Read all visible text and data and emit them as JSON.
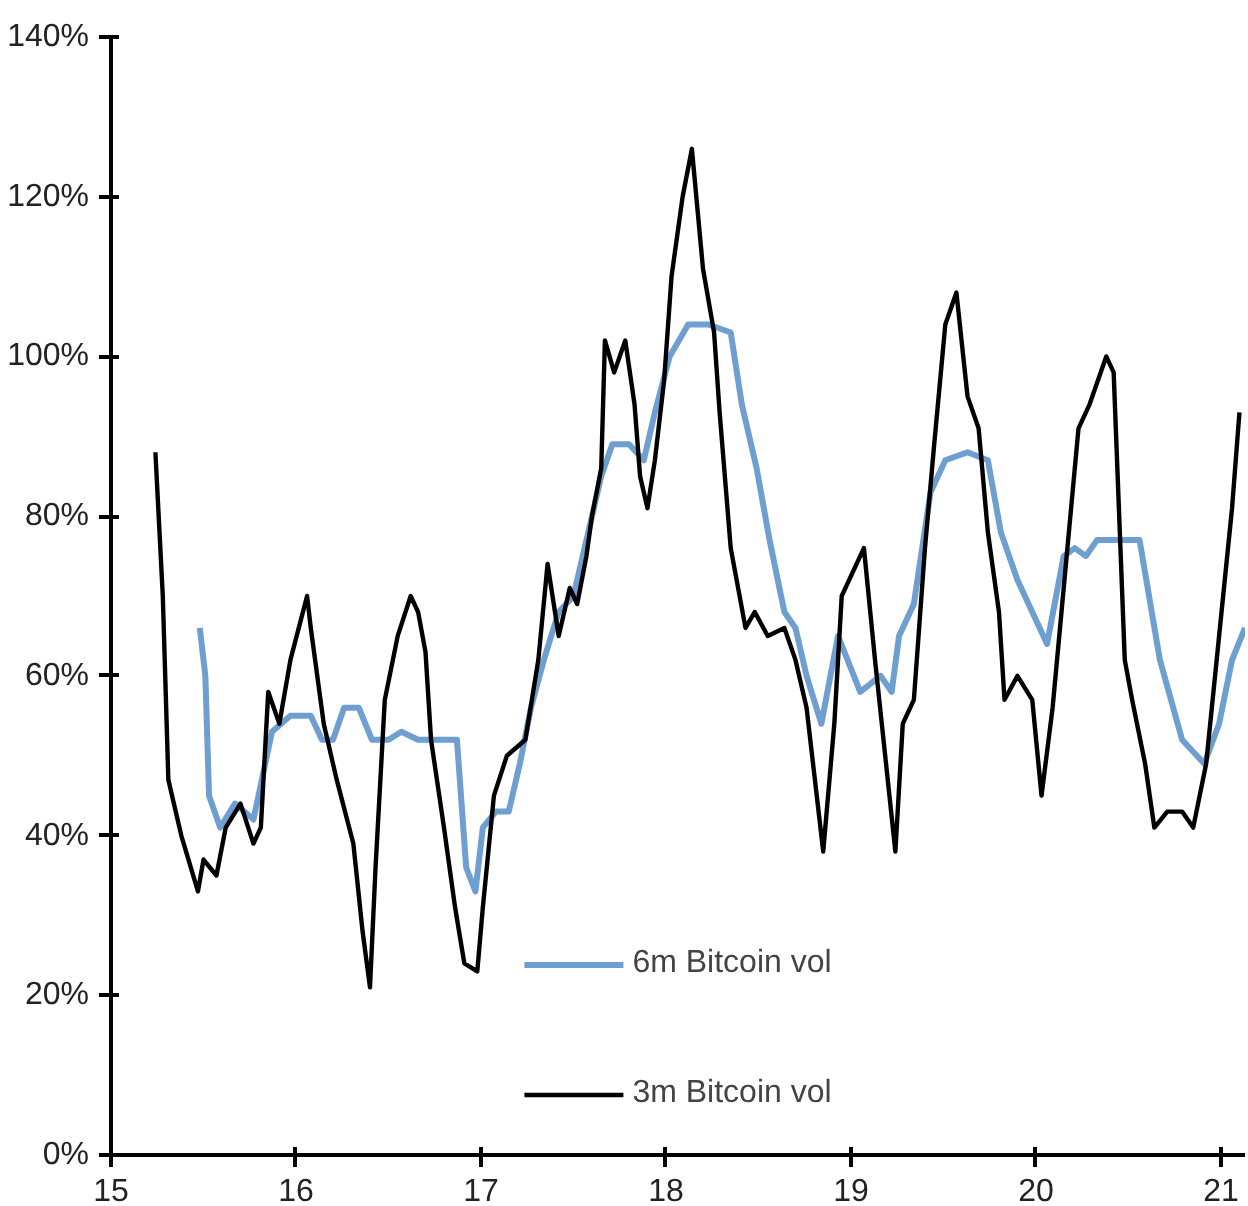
{
  "chart_data": {
    "type": "line",
    "xlim": [
      15,
      21.13
    ],
    "xticks": [
      15,
      16,
      17,
      18,
      19,
      20,
      21
    ],
    "ylim": [
      0,
      140
    ],
    "yticks": [
      {
        "value": 0,
        "label": "0%"
      },
      {
        "value": 20,
        "label": "20%"
      },
      {
        "value": 40,
        "label": "40%"
      },
      {
        "value": 60,
        "label": "60%"
      },
      {
        "value": 80,
        "label": "80%"
      },
      {
        "value": 100,
        "label": "100%"
      },
      {
        "value": 120,
        "label": "120%"
      },
      {
        "value": 140,
        "label": "140%"
      }
    ],
    "grid": false,
    "legend": "bottom",
    "line_style": "solid",
    "marker": "none",
    "series": [
      {
        "name": "6m Bitcoin vol",
        "color": "#6f9fd0",
        "x": [
          15.48,
          15.51,
          15.53,
          15.59,
          15.67,
          15.77,
          15.87,
          15.97,
          16.08,
          16.14,
          16.2,
          16.26,
          16.34,
          16.41,
          16.5,
          16.57,
          16.66,
          16.87,
          16.92,
          16.97,
          17.01,
          17.08,
          17.15,
          17.21,
          17.27,
          17.34,
          17.42,
          17.5,
          17.57,
          17.65,
          17.71,
          17.8,
          17.88,
          17.94,
          18.02,
          18.12,
          18.23,
          18.35,
          18.41,
          18.49,
          18.56,
          18.64,
          18.7,
          18.76,
          18.84,
          18.93,
          19.05,
          19.16,
          19.22,
          19.26,
          19.34,
          19.43,
          19.51,
          19.63,
          19.74,
          19.81,
          19.9,
          19.98,
          20.06,
          20.15,
          20.21,
          20.27,
          20.33,
          20.44,
          20.56,
          20.67,
          20.79,
          20.91,
          20.99,
          21.06,
          21.13
        ],
        "values": [
          66,
          60,
          45,
          41,
          44,
          42,
          53,
          55,
          55,
          52,
          52,
          56,
          56,
          52,
          52,
          53,
          52,
          52,
          36,
          33,
          41,
          43,
          43,
          49,
          56,
          62,
          68,
          70,
          77,
          85,
          89,
          89,
          87,
          93,
          100,
          104,
          104,
          103,
          94,
          86,
          77,
          68,
          66,
          60,
          54,
          65,
          58,
          60,
          58,
          65,
          69,
          83,
          87,
          88,
          87,
          78,
          72,
          68,
          64,
          75,
          76,
          75,
          77,
          77,
          77,
          62,
          52,
          49,
          54,
          62,
          66
        ]
      },
      {
        "name": "3m Bitcoin vol",
        "color": "#000000",
        "x": [
          15.24,
          15.28,
          15.31,
          15.38,
          15.47,
          15.5,
          15.57,
          15.62,
          15.7,
          15.77,
          15.81,
          15.85,
          15.91,
          15.97,
          16.06,
          16.08,
          16.15,
          16.22,
          16.31,
          16.36,
          16.4,
          16.43,
          16.48,
          16.55,
          16.62,
          16.66,
          16.7,
          16.73,
          16.8,
          16.86,
          16.91,
          16.98,
          17.01,
          17.07,
          17.14,
          17.24,
          17.31,
          17.36,
          17.42,
          17.48,
          17.52,
          17.57,
          17.6,
          17.65,
          17.67,
          17.72,
          17.78,
          17.83,
          17.86,
          17.9,
          17.94,
          17.99,
          18.03,
          18.09,
          18.14,
          18.2,
          18.26,
          18.29,
          18.35,
          18.43,
          18.48,
          18.55,
          18.64,
          18.7,
          18.76,
          18.85,
          18.91,
          18.95,
          19.07,
          19.13,
          19.24,
          19.28,
          19.34,
          19.4,
          19.45,
          19.51,
          19.57,
          19.63,
          19.69,
          19.74,
          19.8,
          19.83,
          19.9,
          19.98,
          20.03,
          20.09,
          20.23,
          20.29,
          20.38,
          20.42,
          20.48,
          20.52,
          20.59,
          20.64,
          20.71,
          20.79,
          20.85,
          20.92,
          20.99,
          21.06,
          21.1
        ],
        "values": [
          88,
          70,
          47,
          40,
          33,
          37,
          35,
          41,
          44,
          39,
          41,
          58,
          54,
          62,
          70,
          66,
          54,
          47,
          39,
          28,
          21,
          36,
          57,
          65,
          70,
          68,
          63,
          52,
          41,
          31,
          24,
          23,
          31,
          45,
          50,
          52,
          62,
          74,
          65,
          71,
          69,
          75,
          80,
          86,
          102,
          98,
          102,
          94,
          85,
          81,
          87,
          97,
          110,
          120,
          126,
          111,
          103,
          93,
          76,
          66,
          68,
          65,
          66,
          62,
          56,
          38,
          54,
          70,
          76,
          62,
          38,
          54,
          57,
          76,
          89,
          104,
          108,
          95,
          91,
          78,
          68,
          57,
          60,
          57,
          45,
          56,
          91,
          94,
          100,
          98,
          62,
          57,
          49,
          41,
          43,
          43,
          41,
          49,
          65,
          81,
          93
        ]
      }
    ]
  }
}
